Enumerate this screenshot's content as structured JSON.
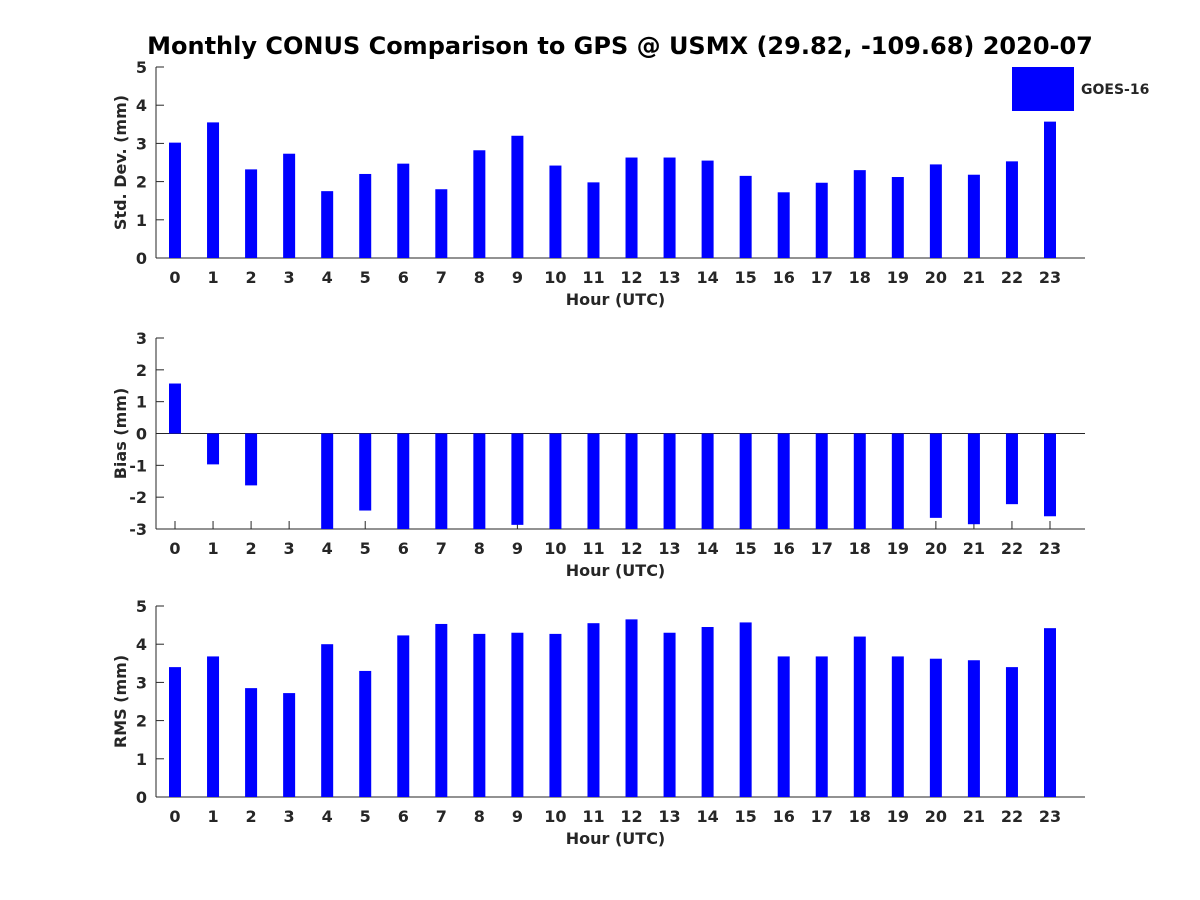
{
  "chart_data": {
    "title": "Monthly CONUS Comparison to GPS @ USMX (29.82, -109.68) 2020-07",
    "legend": {
      "label": "GOES-16",
      "color": "#0000ff",
      "placement": "top-right"
    },
    "bar_color": "#0000ff",
    "categories": [
      0,
      1,
      2,
      3,
      4,
      5,
      6,
      7,
      8,
      9,
      10,
      11,
      12,
      13,
      14,
      15,
      16,
      17,
      18,
      19,
      20,
      21,
      22,
      23
    ],
    "panels": [
      {
        "type": "bar",
        "ylabel": "Std. Dev. (mm)",
        "xlabel": "Hour (UTC)",
        "ylim": [
          0,
          5
        ],
        "yticks": [
          0,
          1,
          2,
          3,
          4,
          5
        ],
        "values": [
          3.02,
          3.55,
          2.32,
          2.73,
          1.75,
          2.2,
          2.47,
          1.8,
          2.82,
          3.2,
          2.42,
          1.98,
          2.63,
          2.63,
          2.55,
          2.15,
          1.72,
          1.97,
          2.3,
          2.12,
          2.45,
          2.18,
          2.53,
          3.57
        ]
      },
      {
        "type": "bar",
        "ylabel": "Bias (mm)",
        "xlabel": "Hour (UTC)",
        "ylim": [
          -3,
          3
        ],
        "yticks": [
          -3,
          -2,
          -1,
          0,
          1,
          2,
          3
        ],
        "values": [
          1.57,
          -0.97,
          -1.63,
          0,
          -3.0,
          -2.42,
          -3.0,
          -3.0,
          -3.0,
          -2.87,
          -3.0,
          -3.0,
          -3.0,
          -3.0,
          -3.0,
          -3.0,
          -3.0,
          -3.0,
          -3.0,
          -3.0,
          -2.65,
          -2.85,
          -2.22,
          -2.6
        ]
      },
      {
        "type": "bar",
        "ylabel": "RMS (mm)",
        "xlabel": "Hour (UTC)",
        "ylim": [
          0,
          5
        ],
        "yticks": [
          0,
          1,
          2,
          3,
          4,
          5
        ],
        "values": [
          3.4,
          3.68,
          2.85,
          2.72,
          4.0,
          3.3,
          4.23,
          4.53,
          4.27,
          4.3,
          4.27,
          4.55,
          4.65,
          4.3,
          4.45,
          4.57,
          3.68,
          3.68,
          4.2,
          3.68,
          3.62,
          3.58,
          3.4,
          4.42
        ]
      }
    ]
  }
}
